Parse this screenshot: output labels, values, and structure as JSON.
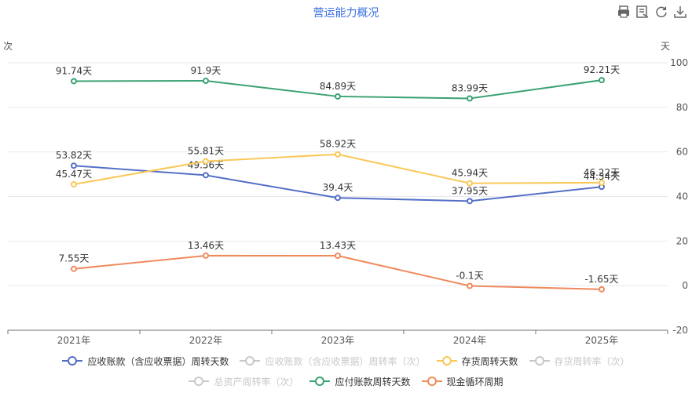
{
  "chart_data": {
    "type": "line",
    "title": "营运能力概况",
    "left_axis_unit": "次",
    "right_axis_unit": "天",
    "categories": [
      "2021年",
      "2022年",
      "2023年",
      "2024年",
      "2025年"
    ],
    "y_ticks": [
      "100",
      "80",
      "60",
      "40",
      "20",
      "0",
      "-20"
    ],
    "ylim": [
      -20,
      100
    ],
    "grid": true,
    "legend_position": "bottom",
    "series": [
      {
        "name": "应收账款（含应收票据）周转天数",
        "color": "#5470c6",
        "visible": true,
        "values": [
          53.82,
          49.56,
          39.4,
          37.95,
          44.34
        ],
        "labels": [
          "53.82天",
          "49.56天",
          "39.4天",
          "37.95天",
          "44.34天"
        ]
      },
      {
        "name": "应收账款（含应收票据）周转率（次）",
        "color": "#c8c8c8",
        "visible": false
      },
      {
        "name": "存货周转天数",
        "color": "#fac858",
        "visible": true,
        "values": [
          45.47,
          55.81,
          58.92,
          45.94,
          46.22
        ],
        "labels": [
          "45.47天",
          "55.81天",
          "58.92天",
          "45.94天",
          "46.22天"
        ]
      },
      {
        "name": "存货周转率（次）",
        "color": "#c8c8c8",
        "visible": false
      },
      {
        "name": "总资产周转率（次）",
        "color": "#c8c8c8",
        "visible": false
      },
      {
        "name": "应付账款周转天数",
        "color": "#3ba272",
        "visible": true,
        "values": [
          91.74,
          91.9,
          84.89,
          83.99,
          92.21
        ],
        "labels": [
          "91.74天",
          "91.9天",
          "84.89天",
          "83.99天",
          "92.21天"
        ]
      },
      {
        "name": "现金循环周期",
        "color": "#f08a5d",
        "visible": true,
        "values": [
          7.55,
          13.46,
          13.43,
          -0.1,
          -1.65
        ],
        "labels": [
          "7.55天",
          "13.46天",
          "13.43天",
          "-0.1天",
          "-1.65天"
        ]
      }
    ]
  },
  "icons": {
    "toolbar": [
      "print-icon",
      "data-view-icon",
      "refresh-icon",
      "download-icon"
    ]
  }
}
